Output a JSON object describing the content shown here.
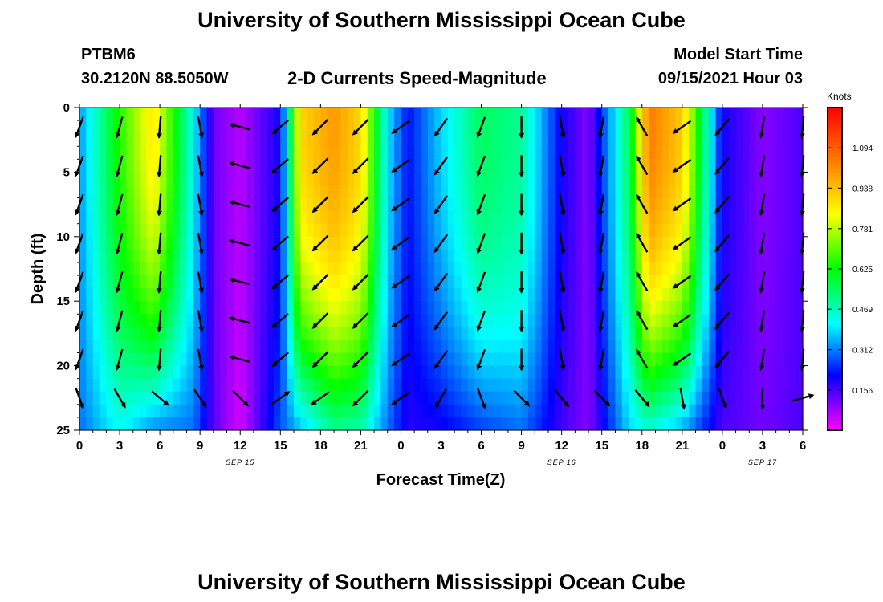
{
  "header": {
    "title": "University of Southern Mississippi Ocean Cube",
    "station": "PTBM6",
    "coords": "30.2120N  88.5050W",
    "subtitle": "2-D Currents Speed-Magnitude",
    "model_label": "Model Start Time",
    "model_time": "09/15/2021 Hour 03"
  },
  "footer": {
    "title": "University of Southern Mississippi Ocean Cube"
  },
  "colors": {
    "high": "#ff0000",
    "mid": "#00ff00",
    "low": "#0000ff",
    "min": "#ff00ff",
    "arrow": "#000000"
  },
  "chart_data": {
    "type": "heatmap",
    "title": "2-D Currents Speed-Magnitude",
    "xlabel": "Forecast Time(Z)",
    "ylabel": "Depth (ft)",
    "xlim": [
      0,
      54
    ],
    "ylim": [
      25,
      0
    ],
    "x_ticks": [
      0,
      3,
      6,
      9,
      12,
      15,
      18,
      21,
      24,
      27,
      30,
      33,
      36,
      39,
      42,
      45,
      48,
      51,
      54
    ],
    "x_tick_labels": [
      "0",
      "3",
      "6",
      "9",
      "12",
      "15",
      "18",
      "21",
      "0",
      "3",
      "6",
      "9",
      "12",
      "15",
      "18",
      "21",
      "0",
      "3",
      "6"
    ],
    "y_ticks": [
      0,
      5,
      10,
      15,
      20,
      25
    ],
    "y_tick_labels": [
      "0",
      "5",
      "10",
      "15",
      "20",
      "25"
    ],
    "date_labels": [
      {
        "x": 12,
        "text": "SEP 15"
      },
      {
        "x": 36,
        "text": "SEP 16"
      },
      {
        "x": 51,
        "text": "SEP 17"
      }
    ],
    "colorbar": {
      "label": "Knots",
      "min": 0,
      "max": 1.25,
      "ticks": [
        1.094,
        0.938,
        0.781,
        0.625,
        0.469,
        0.312,
        0.156
      ],
      "tick_labels": [
        "1.094",
        "0.938",
        "0.781",
        "0.625",
        "0.469",
        "0.312",
        "0.156"
      ]
    },
    "speed_profile": {
      "hours": [
        0,
        3,
        5.5,
        8.5,
        10,
        12,
        15,
        16.5,
        19,
        21,
        23,
        24.5,
        27,
        30,
        33,
        36,
        38,
        41,
        42.5,
        45,
        48,
        51,
        54
      ],
      "surface_knots": [
        0.33,
        0.65,
        0.88,
        0.42,
        0.12,
        0.06,
        0.2,
        0.9,
        1.0,
        0.9,
        0.4,
        0.22,
        0.38,
        0.55,
        0.5,
        0.2,
        0.1,
        0.55,
        1.05,
        0.92,
        0.2,
        0.1,
        0.15
      ],
      "bottom_knots": [
        0.3,
        0.42,
        0.32,
        0.3,
        0.14,
        0.03,
        0.28,
        0.36,
        0.5,
        0.48,
        0.3,
        0.18,
        0.2,
        0.26,
        0.3,
        0.16,
        0.1,
        0.38,
        0.44,
        0.35,
        0.15,
        0.12,
        0.15
      ]
    },
    "vectors": {
      "hours": [
        0,
        3,
        6,
        9,
        12,
        15,
        18,
        21,
        24,
        27,
        30,
        33,
        36,
        39,
        42,
        45,
        48,
        51,
        54
      ],
      "depths": [
        1.5,
        4.5,
        7.5,
        10.5,
        13.5,
        16.5,
        19.5,
        22.5
      ],
      "angles_deg": [
        -110,
        -105,
        -95,
        -80,
        165,
        220,
        225,
        225,
        215,
        235,
        -110,
        -90,
        -80,
        -100,
        120,
        215,
        230,
        -100,
        -95
      ],
      "bottom_angles_deg": [
        -70,
        -60,
        -40,
        -55,
        -45,
        35,
        215,
        225,
        215,
        240,
        -70,
        -45,
        -50,
        -45,
        -50,
        -80,
        -70,
        -90,
        15
      ]
    }
  }
}
